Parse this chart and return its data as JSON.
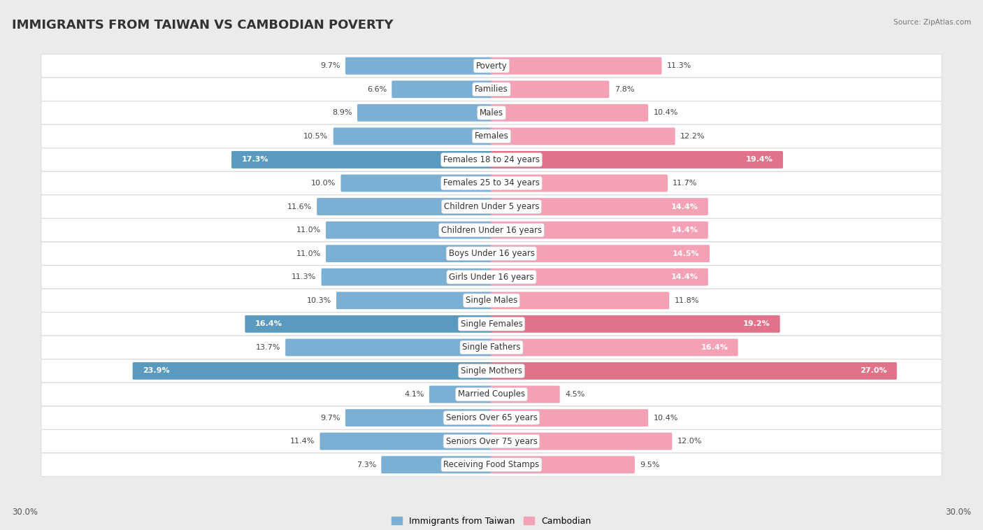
{
  "title": "IMMIGRANTS FROM TAIWAN VS CAMBODIAN POVERTY",
  "source": "Source: ZipAtlas.com",
  "categories": [
    "Poverty",
    "Families",
    "Males",
    "Females",
    "Females 18 to 24 years",
    "Females 25 to 34 years",
    "Children Under 5 years",
    "Children Under 16 years",
    "Boys Under 16 years",
    "Girls Under 16 years",
    "Single Males",
    "Single Females",
    "Single Fathers",
    "Single Mothers",
    "Married Couples",
    "Seniors Over 65 years",
    "Seniors Over 75 years",
    "Receiving Food Stamps"
  ],
  "taiwan_values": [
    9.7,
    6.6,
    8.9,
    10.5,
    17.3,
    10.0,
    11.6,
    11.0,
    11.0,
    11.3,
    10.3,
    16.4,
    13.7,
    23.9,
    4.1,
    9.7,
    11.4,
    7.3
  ],
  "cambodian_values": [
    11.3,
    7.8,
    10.4,
    12.2,
    19.4,
    11.7,
    14.4,
    14.4,
    14.5,
    14.4,
    11.8,
    19.2,
    16.4,
    27.0,
    4.5,
    10.4,
    12.0,
    9.5
  ],
  "taiwan_color": "#7bafd4",
  "cambodian_color": "#f4a0b5",
  "taiwan_label": "Immigrants from Taiwan",
  "cambodian_label": "Cambodian",
  "axis_max": 30.0,
  "axis_label_left": "30.0%",
  "axis_label_right": "30.0%",
  "background_color": "#ebebeb",
  "bar_background": "#ffffff",
  "title_fontsize": 13,
  "label_fontsize": 8.5,
  "value_fontsize": 8,
  "highlight_taiwan": [
    4,
    11,
    13
  ],
  "highlight_cambodian": [
    4,
    11,
    13
  ],
  "taiwan_highlight_color": "#5a9abf",
  "cambodian_highlight_color": "#e0728a"
}
